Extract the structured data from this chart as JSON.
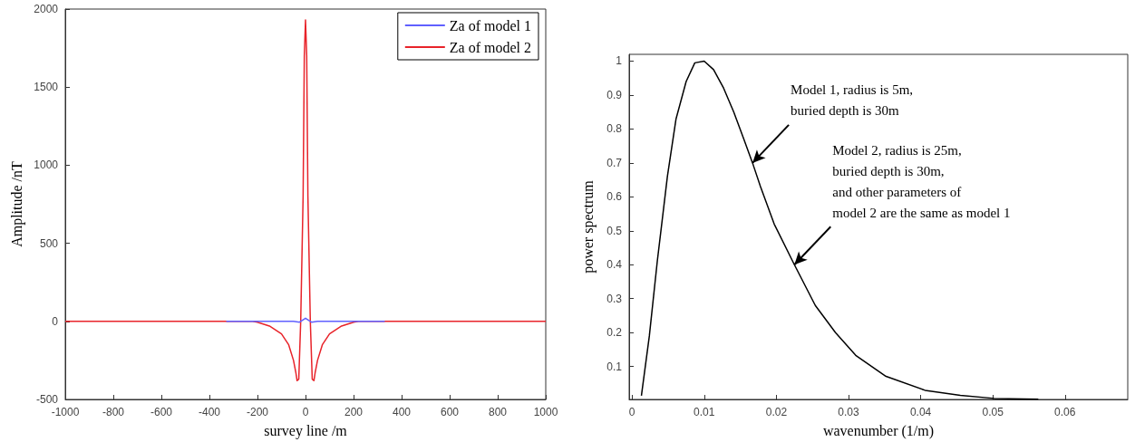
{
  "chart_data": [
    {
      "type": "line",
      "xlabel": "survey line /m",
      "ylabel": "Amplitude /nT",
      "xlim": [
        -1000,
        1000
      ],
      "xticks": [
        -1000,
        -800,
        -600,
        -400,
        -200,
        0,
        200,
        400,
        600,
        800,
        1000
      ],
      "ylim": [
        -500,
        2000
      ],
      "yticks": [
        -500,
        0,
        500,
        1000,
        1500,
        2000
      ],
      "grid": false,
      "legend": "top right",
      "series": [
        {
          "name": "Za of model 1",
          "color": "#6060ff",
          "x": [
            -330,
            -200,
            -100,
            -50,
            -25,
            -10,
            0,
            10,
            25,
            50,
            100,
            200,
            330
          ],
          "values": [
            0,
            0,
            0,
            0,
            -5,
            10,
            20,
            10,
            -5,
            0,
            0,
            0,
            0
          ]
        },
        {
          "name": "Za of model 2",
          "color": "#e8232a",
          "x": [
            -1000,
            -220,
            -200,
            -150,
            -100,
            -70,
            -50,
            -40,
            -35,
            -28,
            -20,
            -10,
            -5,
            0,
            5,
            10,
            20,
            28,
            35,
            40,
            50,
            70,
            100,
            150,
            200,
            220,
            1000
          ],
          "values": [
            0,
            0,
            -5,
            -30,
            -80,
            -150,
            -250,
            -330,
            -380,
            -370,
            0,
            800,
            1700,
            1930,
            1700,
            800,
            0,
            -370,
            -380,
            -330,
            -250,
            -150,
            -80,
            -30,
            -5,
            0,
            0
          ]
        }
      ]
    },
    {
      "type": "line",
      "xlabel": "wavenumber (1/m)",
      "ylabel": "power spectrum",
      "xlim": [
        -0.0004,
        0.0687
      ],
      "xticks": [
        0,
        0.01,
        0.02,
        0.03,
        0.04,
        0.05,
        0.06
      ],
      "ylim": [
        0.003,
        1.02
      ],
      "yticks": [
        0.1,
        0.2,
        0.3,
        0.4,
        0.5,
        0.6,
        0.7,
        0.8,
        0.9,
        1
      ],
      "grid": false,
      "series": [
        {
          "color": "#000000",
          "x": [
            0.0013,
            0.0024,
            0.0035,
            0.0049,
            0.0061,
            0.0075,
            0.0087,
            0.01,
            0.0113,
            0.0127,
            0.0141,
            0.0155,
            0.0167,
            0.0178,
            0.0197,
            0.0225,
            0.0254,
            0.0282,
            0.031,
            0.0352,
            0.0406,
            0.0455,
            0.0502,
            0.0563
          ],
          "values": [
            0.014,
            0.19,
            0.41,
            0.66,
            0.83,
            0.94,
            0.995,
            1.0,
            0.975,
            0.92,
            0.85,
            0.77,
            0.7,
            0.63,
            0.52,
            0.4,
            0.28,
            0.2,
            0.133,
            0.071,
            0.03,
            0.015,
            0.006,
            0.004
          ]
        }
      ],
      "annotations": [
        {
          "text": "Model 1, radius is 5m,\nburied depth is 30m",
          "x": 0.0167,
          "y": 0.7
        },
        {
          "text": "Model 2, radius is 25m,\nburied depth is 30m,\nand other parameters of\nmodel 2 are the same as model 1",
          "x": 0.0225,
          "y": 0.4
        }
      ]
    }
  ]
}
